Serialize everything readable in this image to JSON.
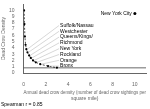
{
  "chart_data": {
    "type": "scatter",
    "xlabel": "Annual dead crow density (number of dead crow sightings per square mile)",
    "ylabel": "Dead Crow Density",
    "footnote": "Spearman r = 0.85",
    "xlim": [
      0,
      11
    ],
    "ylim": [
      0,
      11
    ],
    "xticks": [
      0,
      2,
      4,
      6,
      8,
      10
    ],
    "yticks": [
      0,
      1,
      2,
      3,
      4,
      5,
      6,
      7,
      8,
      9,
      10
    ],
    "grid": false,
    "series": [
      {
        "x": [
          0.05,
          0.08,
          0.12,
          0.18,
          0.25,
          0.35,
          0.5,
          0.65,
          0.85,
          1.1,
          1.5,
          2.2,
          3.0
        ],
        "values": [
          10.0,
          7.8,
          5.8,
          4.5,
          3.8,
          3.3,
          2.8,
          2.4,
          2.0,
          1.7,
          1.4,
          1.1,
          0.85
        ],
        "color": "#000000",
        "line_style": "dashed",
        "marker": "dot"
      },
      {
        "x": [
          10.0
        ],
        "values": [
          9.5
        ],
        "color": "#000000",
        "marker": "dot"
      }
    ],
    "hline": {
      "y": 0.82,
      "color": "#000000"
    },
    "annotations": [
      {
        "text": "Suffolk/Nassau",
        "x": 0.25,
        "y": 3.8
      },
      {
        "text": "Westchester",
        "x": 0.35,
        "y": 3.3
      },
      {
        "text": "Queens/Kings/",
        "x": 0.5,
        "y": 2.8
      },
      {
        "text": "Richmond",
        "x": 0.65,
        "y": 2.4
      },
      {
        "text": "New York",
        "x": 0.85,
        "y": 2.0
      },
      {
        "text": "Rockland",
        "x": 1.1,
        "y": 1.7
      },
      {
        "text": "Orange",
        "x": 1.5,
        "y": 1.4
      },
      {
        "text": "Bronx",
        "x": 2.2,
        "y": 1.1
      },
      {
        "text": "New York City",
        "x": 10.0,
        "y": 9.5
      }
    ]
  }
}
